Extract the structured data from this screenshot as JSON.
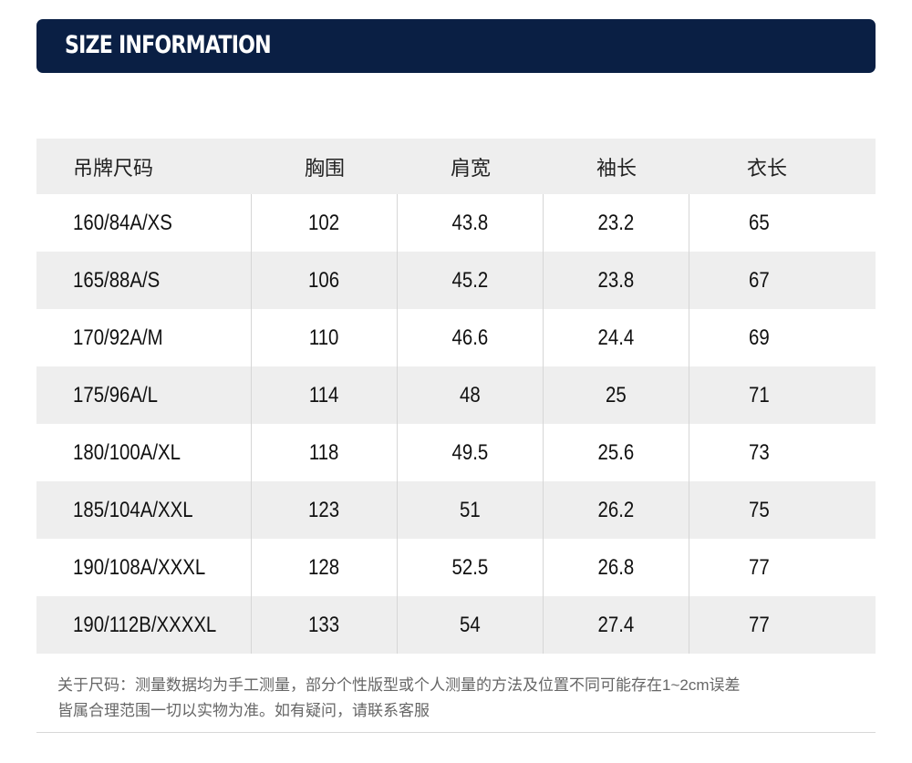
{
  "banner": {
    "title": "SIZE INFORMATION",
    "background": "#0a1f44"
  },
  "table": {
    "headers": [
      "吊牌尺码",
      "胸围",
      "肩宽",
      "袖长",
      "衣长"
    ],
    "rows": [
      [
        "160/84A/XS",
        "102",
        "43.8",
        "23.2",
        "65"
      ],
      [
        "165/88A/S",
        "106",
        "45.2",
        "23.8",
        "67"
      ],
      [
        "170/92A/M",
        "110",
        "46.6",
        "24.4",
        "69"
      ],
      [
        "175/96A/L",
        "114",
        "48",
        "25",
        "71"
      ],
      [
        "180/100A/XL",
        "118",
        "49.5",
        "25.6",
        "73"
      ],
      [
        "185/104A/XXL",
        "123",
        "51",
        "26.2",
        "75"
      ],
      [
        "190/108A/XXXL",
        "128",
        "52.5",
        "26.8",
        "77"
      ],
      [
        "190/112B/XXXXL",
        "133",
        "54",
        "27.4",
        "77"
      ]
    ]
  },
  "note": {
    "line1": "关于尺码：测量数据均为手工测量，部分个性版型或个人测量的方法及位置不同可能存在1~2cm误差",
    "line2": "皆属合理范围一切以实物为准。如有疑问，请联系客服"
  }
}
